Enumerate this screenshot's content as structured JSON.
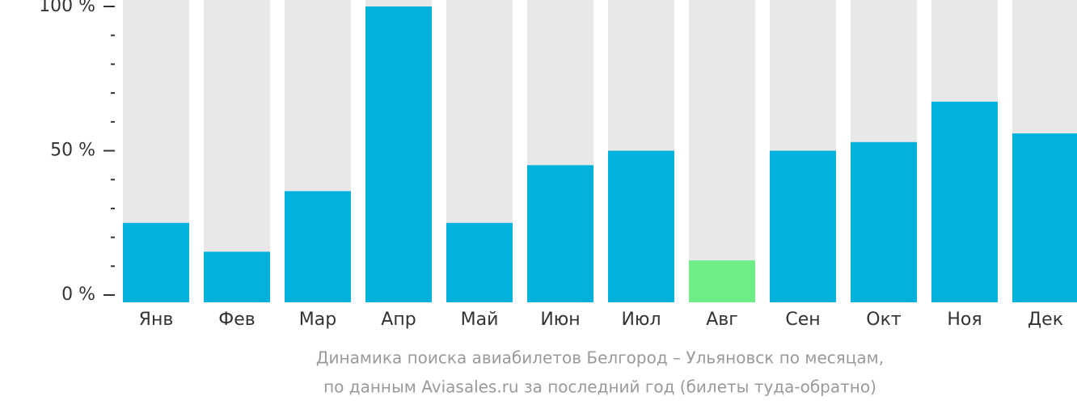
{
  "chart_data": {
    "type": "bar",
    "categories": [
      "Янв",
      "Фев",
      "Мар",
      "Апр",
      "Май",
      "Июн",
      "Июл",
      "Авг",
      "Сен",
      "Окт",
      "Ноя",
      "Дек"
    ],
    "values": [
      25,
      15,
      36,
      100,
      25,
      45,
      50,
      12,
      50,
      53,
      67,
      56
    ],
    "colors": [
      "#00b0dd",
      "#00b0dd",
      "#00b0dd",
      "#00b0dd",
      "#00b0dd",
      "#00b0dd",
      "#00b0dd",
      "#6ced86",
      "#00b0dd",
      "#00b0dd",
      "#00b0dd",
      "#00b0dd"
    ],
    "background_color": "#e8e8e8",
    "ylim": [
      0,
      100
    ],
    "yticks": [
      {
        "value": 0,
        "label": "0 %"
      },
      {
        "value": 50,
        "label": "50 %"
      },
      {
        "value": 100,
        "label": "100 %"
      }
    ],
    "minor_yticks": [
      10,
      20,
      30,
      40,
      60,
      70,
      80,
      90
    ],
    "caption": [
      "Динамика поиска авиабилетов Белгород – Ульяновск по месяцам,",
      "по данным Aviasales.ru за последний год (билеты туда-обратно)"
    ]
  }
}
